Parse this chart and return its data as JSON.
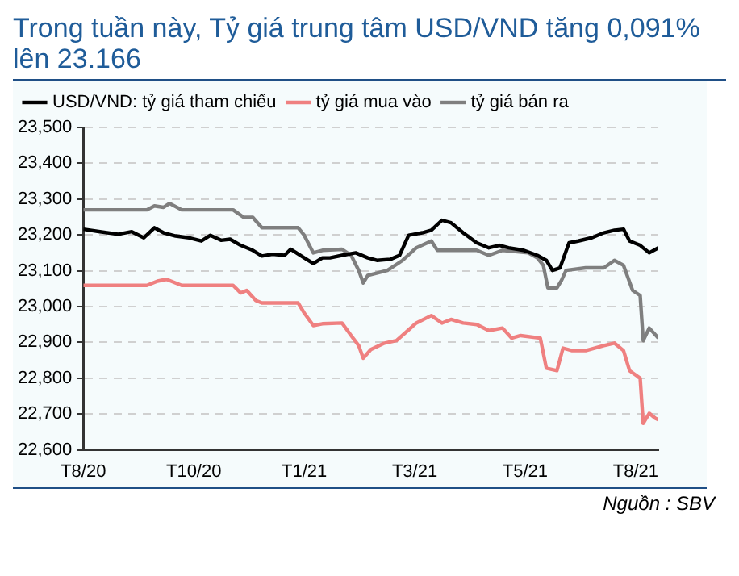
{
  "chart_data": {
    "type": "line",
    "title": "Trong tuần này, Tỷ giá trung tâm USD/VND tăng 0,091% lên 23.166",
    "annotations": [
      "Nguồn : SBV"
    ],
    "xlim": [
      "2020-08-10",
      "2021-08-25"
    ],
    "xticks": [
      {
        "value": "2020-08-10",
        "label": "T8/20"
      },
      {
        "value": "2020-10-22",
        "label": "T10/20"
      },
      {
        "value": "2021-01-03",
        "label": "T1/21"
      },
      {
        "value": "2021-03-17",
        "label": "T3/21"
      },
      {
        "value": "2021-05-29",
        "label": "T5/21"
      },
      {
        "value": "2021-08-10",
        "label": "T8/21"
      }
    ],
    "ylim": [
      22600,
      23500
    ],
    "yticks": [
      {
        "value": 22600,
        "label": "22,600"
      },
      {
        "value": 22700,
        "label": "22,700"
      },
      {
        "value": 22800,
        "label": "22,800"
      },
      {
        "value": 22900,
        "label": "22,900"
      },
      {
        "value": 23000,
        "label": "23,000"
      },
      {
        "value": 23100,
        "label": "23,100"
      },
      {
        "value": 23200,
        "label": "23,200"
      },
      {
        "value": 23300,
        "label": "23,300"
      },
      {
        "value": 23400,
        "label": "23,400"
      },
      {
        "value": 23500,
        "label": "23,500"
      }
    ],
    "grid": "y",
    "legend": "top",
    "marker": "none",
    "series": [
      {
        "name": "USD/VND: tỷ giá tham chiếu",
        "color": "#000000",
        "x": [
          "2020-08-10",
          "2020-08-21",
          "2020-09-02",
          "2020-09-11",
          "2020-09-19",
          "2020-09-26",
          "2020-10-02",
          "2020-10-10",
          "2020-10-19",
          "2020-10-27",
          "2020-11-02",
          "2020-11-09",
          "2020-11-15",
          "2020-11-22",
          "2020-11-30",
          "2020-12-06",
          "2020-12-13",
          "2020-12-21",
          "2020-12-25",
          "2021-01-03",
          "2021-01-09",
          "2021-01-15",
          "2021-01-20",
          "2021-01-28",
          "2021-02-06",
          "2021-02-14",
          "2021-02-20",
          "2021-03-01",
          "2021-03-07",
          "2021-03-13",
          "2021-03-22",
          "2021-03-28",
          "2021-04-04",
          "2021-04-10",
          "2021-04-18",
          "2021-04-27",
          "2021-05-05",
          "2021-05-12",
          "2021-05-18",
          "2021-05-28",
          "2021-06-06",
          "2021-06-12",
          "2021-06-16",
          "2021-06-21",
          "2021-06-27",
          "2021-07-03",
          "2021-07-12",
          "2021-07-20",
          "2021-07-27",
          "2021-08-02",
          "2021-08-06",
          "2021-08-13",
          "2021-08-19",
          "2021-08-25"
        ],
        "values": [
          23216,
          23209,
          23202,
          23209,
          23192,
          23220,
          23206,
          23197,
          23192,
          23183,
          23199,
          23185,
          23188,
          23171,
          23157,
          23141,
          23146,
          23143,
          23160,
          23136,
          23120,
          23136,
          23136,
          23143,
          23150,
          23136,
          23129,
          23132,
          23143,
          23199,
          23206,
          23213,
          23241,
          23234,
          23206,
          23178,
          23164,
          23171,
          23164,
          23157,
          23143,
          23129,
          23101,
          23108,
          23178,
          23183,
          23192,
          23206,
          23213,
          23216,
          23183,
          23171,
          23150,
          23164
        ]
      },
      {
        "name": "tỷ giá mua vào",
        "color": "#ef8080",
        "x": [
          "2020-08-10",
          "2020-09-21",
          "2020-09-28",
          "2020-10-04",
          "2020-10-10",
          "2020-10-14",
          "2020-11-17",
          "2020-11-22",
          "2020-11-26",
          "2020-12-02",
          "2020-12-06",
          "2020-12-30",
          "2021-01-03",
          "2021-01-09",
          "2021-01-15",
          "2021-01-28",
          "2021-02-03",
          "2021-02-08",
          "2021-02-11",
          "2021-02-16",
          "2021-02-25",
          "2021-03-05",
          "2021-03-18",
          "2021-03-28",
          "2021-04-04",
          "2021-04-10",
          "2021-04-18",
          "2021-04-27",
          "2021-05-05",
          "2021-05-14",
          "2021-05-20",
          "2021-05-26",
          "2021-06-08",
          "2021-06-12",
          "2021-06-19",
          "2021-06-23",
          "2021-06-29",
          "2021-07-08",
          "2021-07-20",
          "2021-07-27",
          "2021-08-02",
          "2021-08-06",
          "2021-08-13",
          "2021-08-15",
          "2021-08-19",
          "2021-08-23",
          "2021-08-25"
        ],
        "values": [
          23059,
          23059,
          23071,
          23076,
          23066,
          23059,
          23059,
          23038,
          23045,
          23017,
          23010,
          23010,
          22982,
          22947,
          22952,
          22954,
          22919,
          22891,
          22856,
          22880,
          22898,
          22905,
          22954,
          22975,
          22954,
          22964,
          22954,
          22950,
          22933,
          22940,
          22912,
          22919,
          22912,
          22828,
          22821,
          22884,
          22877,
          22877,
          22891,
          22898,
          22877,
          22821,
          22800,
          22674,
          22702,
          22688,
          22684
        ]
      },
      {
        "name": "tỷ giá bán ra",
        "color": "#7f7f7f",
        "x": [
          "2020-08-10",
          "2020-09-21",
          "2020-09-26",
          "2020-10-02",
          "2020-10-06",
          "2020-10-14",
          "2020-11-17",
          "2020-11-24",
          "2020-11-30",
          "2020-12-06",
          "2020-12-30",
          "2021-01-03",
          "2021-01-09",
          "2021-01-15",
          "2021-01-28",
          "2021-02-03",
          "2021-02-08",
          "2021-02-11",
          "2021-02-14",
          "2021-02-27",
          "2021-03-09",
          "2021-03-18",
          "2021-03-28",
          "2021-04-01",
          "2021-04-14",
          "2021-04-27",
          "2021-05-05",
          "2021-05-14",
          "2021-05-31",
          "2021-06-06",
          "2021-06-10",
          "2021-06-13",
          "2021-06-19",
          "2021-06-22",
          "2021-06-25",
          "2021-07-08",
          "2021-07-20",
          "2021-07-27",
          "2021-08-02",
          "2021-08-08",
          "2021-08-13",
          "2021-08-15",
          "2021-08-19",
          "2021-08-25"
        ],
        "values": [
          23270,
          23270,
          23281,
          23277,
          23288,
          23270,
          23270,
          23249,
          23249,
          23220,
          23220,
          23199,
          23150,
          23157,
          23160,
          23143,
          23101,
          23066,
          23087,
          23101,
          23129,
          23164,
          23183,
          23157,
          23157,
          23157,
          23143,
          23157,
          23150,
          23136,
          23115,
          23052,
          23052,
          23073,
          23101,
          23108,
          23108,
          23129,
          23115,
          23045,
          23031,
          22905,
          22940,
          22912
        ]
      }
    ]
  }
}
